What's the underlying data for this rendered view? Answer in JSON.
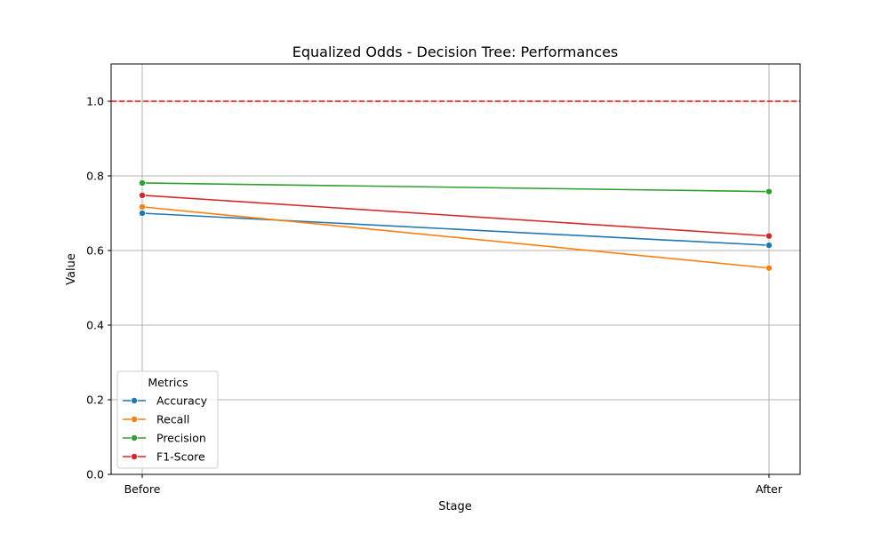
{
  "chart_data": {
    "type": "line",
    "title": "Equalized Odds - Decision Tree: Performances",
    "xlabel": "Stage",
    "ylabel": "Value",
    "categories": [
      "Before",
      "After"
    ],
    "ylim": [
      0,
      1.1
    ],
    "yticks": [
      0.0,
      0.2,
      0.4,
      0.6,
      0.8,
      1.0
    ],
    "ytick_labels": [
      "0.0",
      "0.2",
      "0.4",
      "0.6",
      "0.8",
      "1.0"
    ],
    "grid": true,
    "reference_line": {
      "y": 1.0,
      "color": "#ff0000",
      "style": "dashed"
    },
    "legend": {
      "title": "Metrics",
      "placement": "lower-left"
    },
    "series": [
      {
        "name": "Accuracy",
        "color": "#1f77b4",
        "values": [
          0.7,
          0.614
        ]
      },
      {
        "name": "Recall",
        "color": "#ff7f0e",
        "values": [
          0.717,
          0.553
        ]
      },
      {
        "name": "Precision",
        "color": "#2ca02c",
        "values": [
          0.781,
          0.758
        ]
      },
      {
        "name": "F1-Score",
        "color": "#d62728",
        "values": [
          0.748,
          0.639
        ]
      }
    ]
  }
}
